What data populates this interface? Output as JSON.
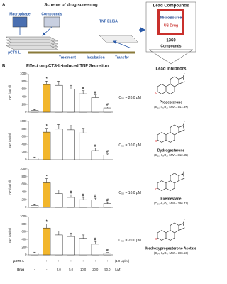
{
  "panel_a": {
    "label": "A",
    "title": "Scheme of drug screening",
    "macrophage": "Macrophage",
    "compounds": "Compounds",
    "elisa": "TNF ELISA",
    "stimulus": "pCTS-L",
    "steps": [
      "Treatment",
      "Incubation",
      "Transfer"
    ],
    "library_title": "Lead Compounds",
    "library_brand": "MicroSource",
    "library_name": "US Drug",
    "library_count": "1360",
    "library_unit": "Compounds"
  },
  "panel_b": {
    "label": "B",
    "title": "Effect on pCTS-L-induced TNF Secretion",
    "colors": [
      "#ffffff",
      "#f2b62c",
      "#ffffff",
      "#ffffff",
      "#ffffff",
      "#ffffff",
      "#ffffff"
    ],
    "charts": [
      {
        "type": "bar",
        "ylabel": "TNF (pg/ml)",
        "ylim": [
          0,
          1000
        ],
        "yticks": [
          0,
          200,
          400,
          600,
          800,
          1000
        ],
        "values": [
          50,
          720,
          700,
          600,
          480,
          380,
          110
        ],
        "errors": [
          20,
          90,
          110,
          100,
          80,
          70,
          30
        ],
        "markers": [
          null,
          "*",
          null,
          null,
          "#",
          "#",
          "#"
        ],
        "annotation": "IC₅₀ = 20.0 μM"
      },
      {
        "type": "bar",
        "ylabel": "TNF (pg/ml)",
        "ylim": [
          0,
          1000
        ],
        "yticks": [
          0,
          200,
          400,
          600,
          800,
          1000
        ],
        "values": [
          50,
          720,
          800,
          780,
          700,
          240,
          120
        ],
        "errors": [
          20,
          100,
          120,
          110,
          120,
          60,
          30
        ],
        "markers": [
          null,
          "*",
          null,
          null,
          null,
          "#",
          "#"
        ],
        "annotation": "IC₅₀ = 10.0 μM"
      },
      {
        "type": "bar",
        "ylabel": "TNF (pg/ml)",
        "ylim": [
          0,
          1000
        ],
        "yticks": [
          0,
          200,
          400,
          600,
          800,
          1000
        ],
        "values": [
          50,
          640,
          360,
          260,
          200,
          190,
          100
        ],
        "errors": [
          20,
          110,
          90,
          70,
          60,
          50,
          30
        ],
        "markers": [
          null,
          "*",
          null,
          "#",
          "#",
          "#",
          "#"
        ],
        "annotation": "IC₅₀ = 10.0 μM"
      },
      {
        "type": "bar",
        "ylabel": "TNF (pg/ml)",
        "ylim": [
          0,
          1000
        ],
        "yticks": [
          0,
          200,
          400,
          600,
          800,
          1000
        ],
        "values": [
          50,
          700,
          520,
          480,
          430,
          280,
          40
        ],
        "errors": [
          20,
          110,
          100,
          90,
          90,
          70,
          20
        ],
        "markers": [
          null,
          "*",
          null,
          null,
          null,
          "#",
          "#"
        ],
        "annotation": "IC₅₀ = 20.0 μM"
      }
    ],
    "stimulus_row": {
      "label": "pCTS-L",
      "values": [
        "-",
        "+",
        "+",
        "+",
        "+",
        "+",
        "+"
      ],
      "unit": "(1.0 μg/ml)"
    },
    "drug_row": {
      "label": "Drug",
      "values": [
        "-",
        "-",
        "2.0",
        "5.0",
        "10.0",
        "20.0",
        "50.0"
      ],
      "unit": "(μM)"
    }
  },
  "inhibitors": {
    "title": "Lead Inhibitors",
    "items": [
      {
        "name": "Progesterone",
        "formula": "(C₂₁H₃₀O₂, MW = 314.47)"
      },
      {
        "name": "Dydrogesterone",
        "formula": "(C₂₁H₂₈O₂, MW = 312.45)"
      },
      {
        "name": "Exemestane",
        "formula": "(C₂₀H₂₄O₂, MW = 296.41)"
      },
      {
        "name": "Medroxyprogesterone Acetate",
        "formula": "(C₂₄H₃₄O₄, MW = 386.53)"
      }
    ]
  }
}
